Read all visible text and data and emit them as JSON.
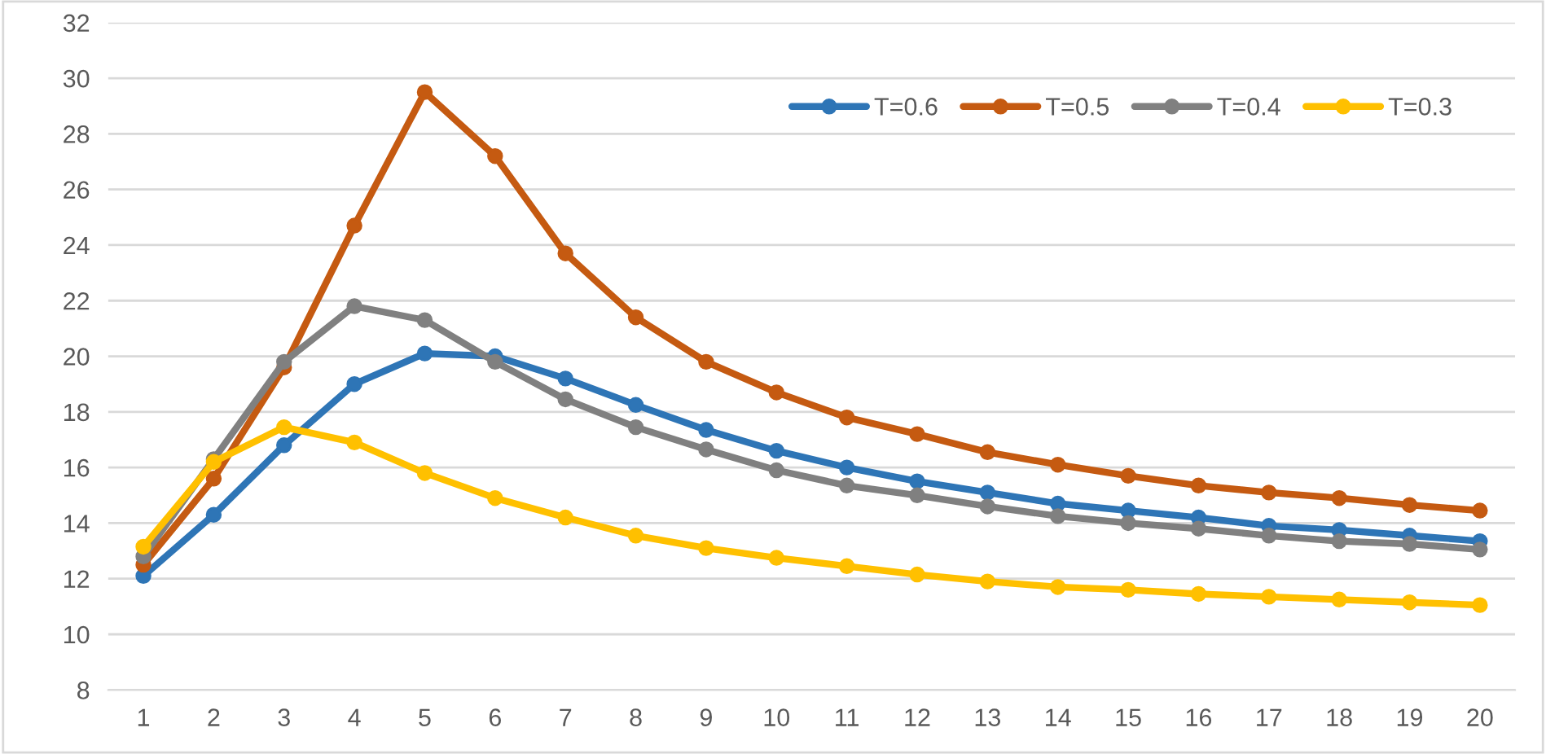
{
  "chart_data": {
    "type": "line",
    "categories": [
      "1",
      "2",
      "3",
      "4",
      "5",
      "6",
      "7",
      "8",
      "9",
      "10",
      "11",
      "12",
      "13",
      "14",
      "15",
      "16",
      "17",
      "18",
      "19",
      "20"
    ],
    "series": [
      {
        "name": "T=0.6",
        "color": "#2e75b6",
        "values": [
          12.1,
          14.3,
          16.8,
          19.0,
          20.1,
          20.0,
          19.2,
          18.25,
          17.35,
          16.6,
          16.0,
          15.5,
          15.1,
          14.7,
          14.45,
          14.2,
          13.9,
          13.75,
          13.55,
          13.35
        ]
      },
      {
        "name": "T=0.5",
        "color": "#c55a11",
        "values": [
          12.5,
          15.6,
          19.6,
          24.7,
          29.5,
          27.2,
          23.7,
          21.4,
          19.8,
          18.7,
          17.8,
          17.2,
          16.55,
          16.1,
          15.7,
          15.35,
          15.1,
          14.9,
          14.65,
          14.45
        ]
      },
      {
        "name": "T=0.4",
        "color": "#808080",
        "values": [
          12.8,
          16.3,
          19.8,
          21.8,
          21.3,
          19.8,
          18.45,
          17.45,
          16.65,
          15.9,
          15.35,
          15.0,
          14.6,
          14.25,
          14.0,
          13.8,
          13.55,
          13.35,
          13.25,
          13.05
        ]
      },
      {
        "name": "T=0.3",
        "color": "#ffc000",
        "values": [
          13.15,
          16.2,
          17.45,
          16.9,
          15.8,
          14.9,
          14.2,
          13.55,
          13.1,
          12.75,
          12.45,
          12.15,
          11.9,
          11.7,
          11.6,
          11.45,
          11.35,
          11.25,
          11.15,
          11.05
        ]
      }
    ],
    "ylim": [
      8,
      32
    ],
    "yticks": [
      8,
      10,
      12,
      14,
      16,
      18,
      20,
      22,
      24,
      26,
      28,
      30,
      32
    ],
    "grid": "y",
    "legend": "top right",
    "marker": "circle",
    "line_style": "solid"
  }
}
